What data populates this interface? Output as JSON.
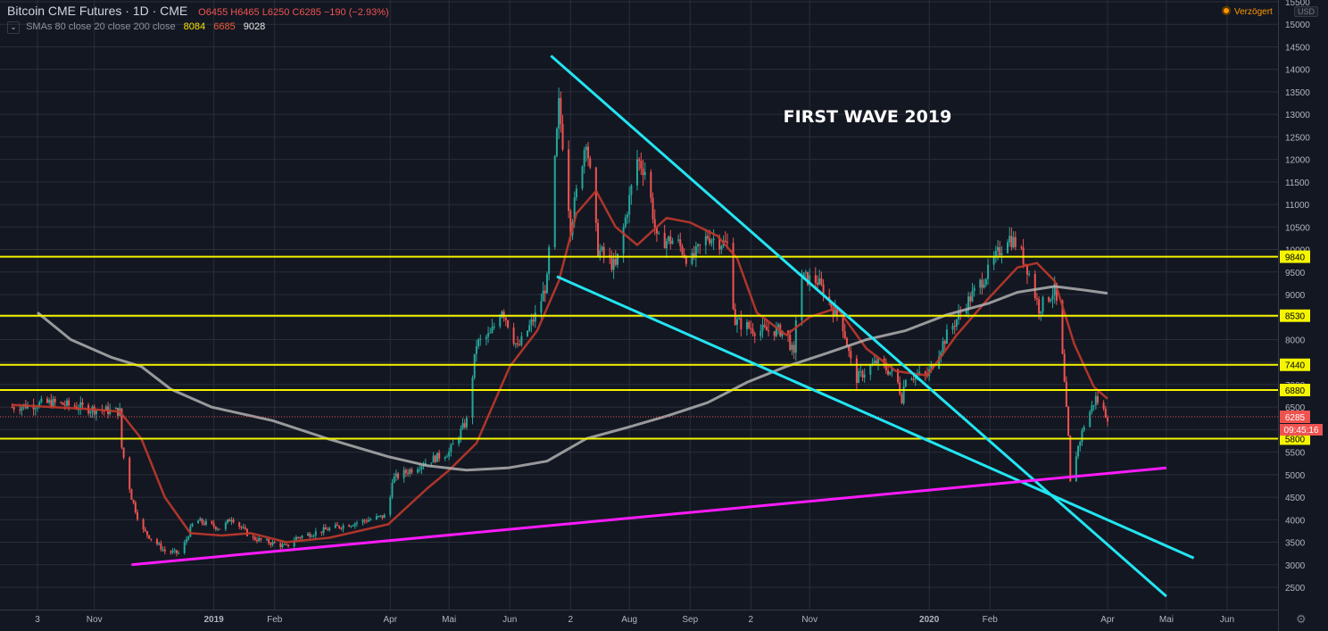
{
  "header": {
    "symbol": "Bitcoin CME Futures · 1D · CME",
    "open": "O6455",
    "high": "H6465",
    "low": "L6250",
    "close": "C6285",
    "change": "−190 (−2.93%)"
  },
  "indicator": {
    "label": "SMAs 80 close 20 close 200 close",
    "values": [
      "8084",
      "6685",
      "9028"
    ]
  },
  "badges": {
    "delayed": "Verzögert",
    "currency": "USD",
    "countdown": "09:45:16",
    "settings_icon": "gear-icon"
  },
  "colors": {
    "background": "#131722",
    "grid": "#2a2e39",
    "candle_up": "#26a69a",
    "candle_down": "#ef5350",
    "sma_20": "#c0392b",
    "sma_200": "#b0b0b0",
    "horizontal_levels": "#f5f500",
    "trendlines": "#22e5f2",
    "support_line": "#ff1aff",
    "annotation": "#ffffff"
  },
  "chart_data": {
    "type": "line",
    "title": "",
    "annotation": "FIRST WAVE 2019",
    "ylim": [
      2000,
      15500
    ],
    "y_ticks": [
      2500,
      3000,
      3500,
      4000,
      4500,
      5000,
      5500,
      6000,
      6500,
      7000,
      7500,
      8000,
      8500,
      9000,
      9500,
      10000,
      10500,
      11000,
      11500,
      12000,
      12500,
      13000,
      13500,
      14000,
      14500,
      15000,
      15500
    ],
    "x_tick_labels": [
      {
        "date": "2018-10-03",
        "label": "3"
      },
      {
        "date": "2018-11-01",
        "label": "Nov"
      },
      {
        "date": "2019-01-01",
        "label": "2019"
      },
      {
        "date": "2019-02-01",
        "label": "Feb"
      },
      {
        "date": "2019-04-01",
        "label": "Apr"
      },
      {
        "date": "2019-05-01",
        "label": "Mai"
      },
      {
        "date": "2019-06-01",
        "label": "Jun"
      },
      {
        "date": "2019-07-02",
        "label": "2"
      },
      {
        "date": "2019-08-01",
        "label": "Aug"
      },
      {
        "date": "2019-09-01",
        "label": "Sep"
      },
      {
        "date": "2019-10-02",
        "label": "2"
      },
      {
        "date": "2019-11-01",
        "label": "Nov"
      },
      {
        "date": "2020-01-01",
        "label": "2020"
      },
      {
        "date": "2020-02-01",
        "label": "Feb"
      },
      {
        "date": "2020-04-01",
        "label": "Apr"
      },
      {
        "date": "2020-05-01",
        "label": "Mai"
      },
      {
        "date": "2020-06-01",
        "label": "Jun"
      }
    ],
    "price_path": [
      [
        "2018-09-20",
        6500
      ],
      [
        "2018-10-10",
        6600
      ],
      [
        "2018-11-01",
        6450
      ],
      [
        "2018-11-14",
        6400
      ],
      [
        "2018-11-15",
        5600
      ],
      [
        "2018-11-20",
        4500
      ],
      [
        "2018-11-25",
        3800
      ],
      [
        "2018-12-07",
        3300
      ],
      [
        "2018-12-15",
        3250
      ],
      [
        "2018-12-22",
        4000
      ],
      [
        "2019-01-05",
        3800
      ],
      [
        "2019-01-10",
        4050
      ],
      [
        "2019-01-20",
        3600
      ],
      [
        "2019-02-07",
        3400
      ],
      [
        "2019-02-12",
        3600
      ],
      [
        "2019-03-01",
        3800
      ],
      [
        "2019-03-31",
        4100
      ],
      [
        "2019-04-02",
        4900
      ],
      [
        "2019-04-20",
        5300
      ],
      [
        "2019-05-01",
        5500
      ],
      [
        "2019-05-10",
        6200
      ],
      [
        "2019-05-15",
        7900
      ],
      [
        "2019-05-22",
        8100
      ],
      [
        "2019-05-28",
        8700
      ],
      [
        "2019-06-05",
        7800
      ],
      [
        "2019-06-15",
        8600
      ],
      [
        "2019-06-20",
        9300
      ],
      [
        "2019-06-26",
        13200
      ],
      [
        "2019-06-29",
        12000
      ],
      [
        "2019-07-02",
        10500
      ],
      [
        "2019-07-10",
        12500
      ],
      [
        "2019-07-16",
        10000
      ],
      [
        "2019-07-25",
        9600
      ],
      [
        "2019-08-05",
        12000
      ],
      [
        "2019-08-10",
        11700
      ],
      [
        "2019-08-15",
        10200
      ],
      [
        "2019-08-25",
        10200
      ],
      [
        "2019-09-01",
        9700
      ],
      [
        "2019-09-10",
        10300
      ],
      [
        "2019-09-20",
        10100
      ],
      [
        "2019-09-24",
        8400
      ],
      [
        "2019-10-05",
        8200
      ],
      [
        "2019-10-20",
        8200
      ],
      [
        "2019-10-24",
        7600
      ],
      [
        "2019-10-26",
        9400
      ],
      [
        "2019-11-05",
        9300
      ],
      [
        "2019-11-18",
        8300
      ],
      [
        "2019-11-24",
        7100
      ],
      [
        "2019-12-05",
        7500
      ],
      [
        "2019-12-15",
        7200
      ],
      [
        "2019-12-18",
        6700
      ],
      [
        "2019-12-20",
        7200
      ],
      [
        "2019-12-31",
        7200
      ],
      [
        "2020-01-10",
        8100
      ],
      [
        "2020-01-20",
        8800
      ],
      [
        "2020-01-31",
        9500
      ],
      [
        "2020-02-10",
        10300
      ],
      [
        "2020-02-15",
        10100
      ],
      [
        "2020-02-20",
        9600
      ],
      [
        "2020-02-26",
        8700
      ],
      [
        "2020-03-05",
        9100
      ],
      [
        "2020-03-08",
        8200
      ],
      [
        "2020-03-12",
        5800
      ],
      [
        "2020-03-13",
        4800
      ],
      [
        "2020-03-15",
        5300
      ],
      [
        "2020-03-20",
        6100
      ],
      [
        "2020-03-26",
        6700
      ],
      [
        "2020-03-31",
        6350
      ],
      [
        "2020-04-01",
        6285
      ]
    ],
    "series": [
      {
        "name": "SMA 20",
        "values": [
          [
            "2018-09-20",
            6550
          ],
          [
            "2018-11-01",
            6450
          ],
          [
            "2018-11-14",
            6400
          ],
          [
            "2018-11-25",
            5800
          ],
          [
            "2018-12-07",
            4500
          ],
          [
            "2018-12-20",
            3700
          ],
          [
            "2019-01-05",
            3650
          ],
          [
            "2019-01-20",
            3700
          ],
          [
            "2019-02-07",
            3500
          ],
          [
            "2019-03-01",
            3600
          ],
          [
            "2019-03-31",
            3900
          ],
          [
            "2019-04-20",
            4700
          ],
          [
            "2019-05-01",
            5100
          ],
          [
            "2019-05-15",
            5700
          ],
          [
            "2019-06-01",
            7400
          ],
          [
            "2019-06-15",
            8200
          ],
          [
            "2019-06-26",
            9300
          ],
          [
            "2019-07-05",
            10800
          ],
          [
            "2019-07-15",
            11300
          ],
          [
            "2019-07-25",
            10500
          ],
          [
            "2019-08-05",
            10100
          ],
          [
            "2019-08-20",
            10700
          ],
          [
            "2019-09-01",
            10600
          ],
          [
            "2019-09-15",
            10300
          ],
          [
            "2019-09-25",
            9800
          ],
          [
            "2019-10-05",
            8600
          ],
          [
            "2019-10-20",
            8100
          ],
          [
            "2019-11-01",
            8500
          ],
          [
            "2019-11-15",
            8700
          ],
          [
            "2019-11-30",
            7800
          ],
          [
            "2019-12-15",
            7300
          ],
          [
            "2019-12-31",
            7200
          ],
          [
            "2020-01-15",
            8100
          ],
          [
            "2020-01-31",
            8900
          ],
          [
            "2020-02-15",
            9600
          ],
          [
            "2020-02-25",
            9700
          ],
          [
            "2020-03-05",
            9300
          ],
          [
            "2020-03-15",
            7900
          ],
          [
            "2020-03-25",
            6950
          ],
          [
            "2020-04-01",
            6685
          ]
        ]
      },
      {
        "name": "SMA 200",
        "values": [
          [
            "2018-10-03",
            8600
          ],
          [
            "2018-10-20",
            8000
          ],
          [
            "2018-11-10",
            7600
          ],
          [
            "2018-11-25",
            7400
          ],
          [
            "2018-12-10",
            6900
          ],
          [
            "2018-12-31",
            6500
          ],
          [
            "2019-01-31",
            6200
          ],
          [
            "2019-02-28",
            5800
          ],
          [
            "2019-03-31",
            5400
          ],
          [
            "2019-04-20",
            5200
          ],
          [
            "2019-05-10",
            5100
          ],
          [
            "2019-05-31",
            5150
          ],
          [
            "2019-06-20",
            5300
          ],
          [
            "2019-07-10",
            5800
          ],
          [
            "2019-07-31",
            6050
          ],
          [
            "2019-08-20",
            6300
          ],
          [
            "2019-09-10",
            6600
          ],
          [
            "2019-09-30",
            7050
          ],
          [
            "2019-10-20",
            7400
          ],
          [
            "2019-11-10",
            7700
          ],
          [
            "2019-11-30",
            8000
          ],
          [
            "2019-12-20",
            8200
          ],
          [
            "2020-01-10",
            8550
          ],
          [
            "2020-01-31",
            8800
          ],
          [
            "2020-02-15",
            9050
          ],
          [
            "2020-03-05",
            9180
          ],
          [
            "2020-03-20",
            9100
          ],
          [
            "2020-04-01",
            9028
          ]
        ]
      }
    ],
    "horizontal_levels": [
      {
        "value": 9840,
        "label": "9840"
      },
      {
        "value": 8530,
        "label": "8530"
      },
      {
        "value": 7440,
        "label": "7440"
      },
      {
        "value": 6880,
        "label": "6880"
      },
      {
        "value": 5800,
        "label": "5800"
      }
    ],
    "current_price": {
      "value": 6285,
      "label": "6285"
    },
    "trendlines": [
      {
        "start": [
          "2019-06-22",
          14300
        ],
        "end": [
          "2020-05-01",
          2300
        ]
      },
      {
        "start": [
          "2019-06-25",
          9400
        ],
        "end": [
          "2020-05-15",
          3150
        ]
      }
    ],
    "support_line": {
      "start": [
        "2018-11-20",
        3000
      ],
      "end": [
        "2020-05-01",
        5150
      ]
    },
    "grid": true,
    "legend": "top-left"
  }
}
